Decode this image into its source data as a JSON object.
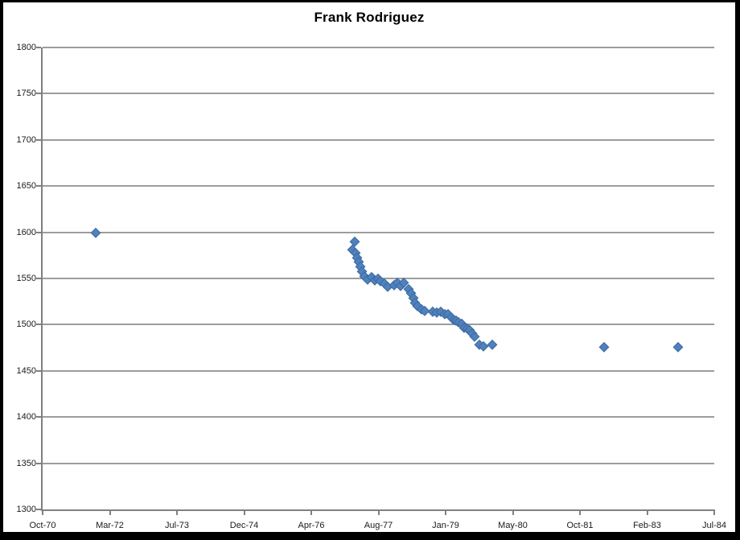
{
  "chart": {
    "title": "Frank Rodriguez"
  },
  "colors": {
    "marker": "#4f81bd",
    "marker_edge": "#3d6aa1",
    "gridline": "#9d9d9d",
    "axis": "#808080",
    "frame": "#000000",
    "background": "#ffffff",
    "label_text": "#1a1a1a"
  },
  "chart_data": {
    "type": "scatter",
    "title": "Frank Rodriguez",
    "legend": "none",
    "grid": "horizontal",
    "marker_shape": "diamond",
    "x_axis": {
      "unit": "months since Oct-1970",
      "min": 0,
      "max": 165,
      "tick_labels": [
        "Oct-70",
        "Mar-72",
        "Jul-73",
        "Dec-74",
        "Apr-76",
        "Aug-77",
        "Jan-79",
        "May-80",
        "Oct-81",
        "Feb-83",
        "Jul-84"
      ]
    },
    "y_axis": {
      "min": 1300,
      "max": 1800,
      "step": 50,
      "tick_labels": [
        "1300",
        "1350",
        "1400",
        "1450",
        "1500",
        "1550",
        "1600",
        "1650",
        "1700",
        "1750",
        "1800"
      ]
    },
    "series": [
      {
        "name": "Frank Rodriguez",
        "points": [
          [
            "Nov-71",
            13.0,
            1600
          ],
          [
            "Feb-77",
            76.1,
            1581
          ],
          [
            "Mar-77",
            76.7,
            1590
          ],
          [
            "Mar-77",
            76.9,
            1578
          ],
          [
            "Mar-77",
            77.3,
            1573
          ],
          [
            "Apr-77",
            77.7,
            1568
          ],
          [
            "Apr-77",
            78.0,
            1563
          ],
          [
            "May-77",
            78.5,
            1558
          ],
          [
            "May-77",
            79.1,
            1553
          ],
          [
            "Jun-77",
            79.9,
            1549
          ],
          [
            "Jul-77",
            80.8,
            1552
          ],
          [
            "Aug-77",
            81.6,
            1548
          ],
          [
            "Aug-77",
            82.4,
            1550
          ],
          [
            "Sep-77",
            83.0,
            1547
          ],
          [
            "Oct-77",
            83.9,
            1545
          ],
          [
            "Nov-77",
            84.7,
            1541
          ],
          [
            "Dec-77",
            86.4,
            1543
          ],
          [
            "Jan-78",
            87.2,
            1546
          ],
          [
            "Feb-78",
            88.0,
            1542
          ],
          [
            "Mar-78",
            88.8,
            1546
          ],
          [
            "Apr-78",
            90.0,
            1539
          ],
          [
            "Apr-78",
            90.5,
            1534
          ],
          [
            "May-78",
            91.0,
            1529
          ],
          [
            "May-78",
            91.5,
            1524
          ],
          [
            "Jun-78",
            92.1,
            1520
          ],
          [
            "Jul-78",
            93.0,
            1517
          ],
          [
            "Aug-78",
            93.8,
            1515
          ],
          [
            "Oct-78",
            95.9,
            1514
          ],
          [
            "Nov-78",
            96.9,
            1513
          ],
          [
            "Dec-78",
            97.9,
            1514
          ],
          [
            "Jan-79",
            98.9,
            1512
          ],
          [
            "Jan-79",
            99.5,
            1512
          ],
          [
            "Feb-79",
            100.3,
            1508
          ],
          [
            "Mar-79",
            100.9,
            1506
          ],
          [
            "Mar-79",
            101.5,
            1505
          ],
          [
            "Apr-79",
            102.1,
            1503
          ],
          [
            "May-79",
            102.9,
            1501
          ],
          [
            "May-79",
            103.5,
            1497
          ],
          [
            "Jun-79",
            104.3,
            1496
          ],
          [
            "Jul-79",
            104.9,
            1494
          ],
          [
            "Jul-79",
            105.5,
            1491
          ],
          [
            "Aug-79",
            106.1,
            1487
          ],
          [
            "Sep-79",
            107.3,
            1479
          ],
          [
            "Oct-79",
            108.3,
            1477
          ],
          [
            "Dec-79",
            110.5,
            1479
          ],
          [
            "Apr-82",
            137.9,
            1476
          ],
          [
            "Oct-83",
            156.1,
            1476
          ]
        ]
      }
    ]
  }
}
